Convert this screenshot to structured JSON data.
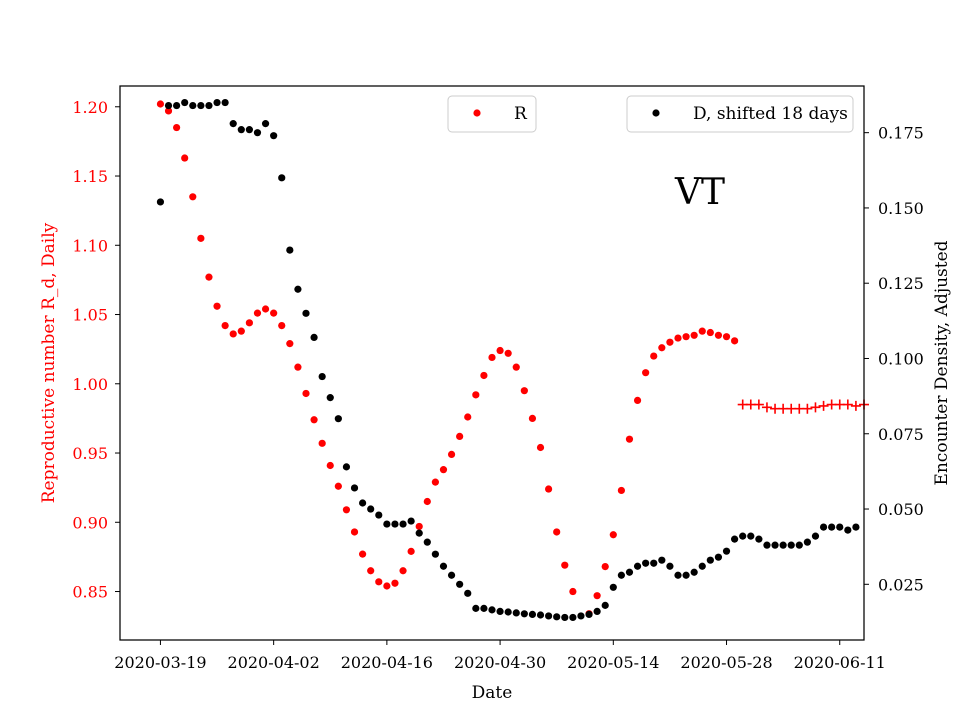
{
  "chart_data": {
    "type": "scatter",
    "xlabel": "Date",
    "y_left_label": "Reproductive number R_d, Daily",
    "y_right_label": "Encounter Density, Adjusted",
    "annotation": "VT",
    "x_start": "2020-03-19",
    "x_range": [
      "2020-03-14",
      "2020-06-14"
    ],
    "x_ticks": [
      "2020-03-19",
      "2020-04-02",
      "2020-04-16",
      "2020-04-30",
      "2020-05-14",
      "2020-05-28",
      "2020-06-11"
    ],
    "y_left_range": [
      0.815,
      1.215
    ],
    "y_left_ticks": [
      0.85,
      0.9,
      0.95,
      1.0,
      1.05,
      1.1,
      1.15,
      1.2
    ],
    "y_right_range": [
      0.0065,
      0.1905
    ],
    "y_right_ticks": [
      0.025,
      0.05,
      0.075,
      0.1,
      0.125,
      0.15,
      0.175
    ],
    "grid": false,
    "colors": {
      "R": "#ff0000",
      "D": "#000000",
      "left_axis": "#ff0000",
      "right_axis": "#000000"
    },
    "legends": [
      {
        "label": "R",
        "color": "#ff0000",
        "placement": "top-center"
      },
      {
        "label": "D, shifted 18 days",
        "color": "#000000",
        "placement": "top-right"
      }
    ],
    "series": [
      {
        "name": "R",
        "axis": "left",
        "marker": "dot",
        "color": "#ff0000",
        "points": [
          [
            "2020-03-19",
            1.202
          ],
          [
            "2020-03-20",
            1.197
          ],
          [
            "2020-03-21",
            1.185
          ],
          [
            "2020-03-22",
            1.163
          ],
          [
            "2020-03-23",
            1.135
          ],
          [
            "2020-03-24",
            1.105
          ],
          [
            "2020-03-25",
            1.077
          ],
          [
            "2020-03-26",
            1.056
          ],
          [
            "2020-03-27",
            1.042
          ],
          [
            "2020-03-28",
            1.036
          ],
          [
            "2020-03-29",
            1.038
          ],
          [
            "2020-03-30",
            1.044
          ],
          [
            "2020-03-31",
            1.051
          ],
          [
            "2020-04-01",
            1.054
          ],
          [
            "2020-04-02",
            1.051
          ],
          [
            "2020-04-03",
            1.042
          ],
          [
            "2020-04-04",
            1.029
          ],
          [
            "2020-04-05",
            1.012
          ],
          [
            "2020-04-06",
            0.993
          ],
          [
            "2020-04-07",
            0.974
          ],
          [
            "2020-04-08",
            0.957
          ],
          [
            "2020-04-09",
            0.941
          ],
          [
            "2020-04-10",
            0.926
          ],
          [
            "2020-04-11",
            0.909
          ],
          [
            "2020-04-12",
            0.893
          ],
          [
            "2020-04-13",
            0.877
          ],
          [
            "2020-04-14",
            0.865
          ],
          [
            "2020-04-15",
            0.857
          ],
          [
            "2020-04-16",
            0.854
          ],
          [
            "2020-04-17",
            0.856
          ],
          [
            "2020-04-18",
            0.865
          ],
          [
            "2020-04-19",
            0.879
          ],
          [
            "2020-04-20",
            0.897
          ],
          [
            "2020-04-21",
            0.915
          ],
          [
            "2020-04-22",
            0.929
          ],
          [
            "2020-04-23",
            0.938
          ],
          [
            "2020-04-24",
            0.949
          ],
          [
            "2020-04-25",
            0.962
          ],
          [
            "2020-04-26",
            0.976
          ],
          [
            "2020-04-27",
            0.992
          ],
          [
            "2020-04-28",
            1.006
          ],
          [
            "2020-04-29",
            1.019
          ],
          [
            "2020-04-30",
            1.024
          ],
          [
            "2020-05-01",
            1.022
          ],
          [
            "2020-05-02",
            1.012
          ],
          [
            "2020-05-03",
            0.995
          ],
          [
            "2020-05-04",
            0.975
          ],
          [
            "2020-05-05",
            0.954
          ],
          [
            "2020-05-06",
            0.924
          ],
          [
            "2020-05-07",
            0.893
          ],
          [
            "2020-05-08",
            0.869
          ],
          [
            "2020-05-09",
            0.85
          ],
          [
            "2020-05-11",
            0.834
          ],
          [
            "2020-05-12",
            0.847
          ],
          [
            "2020-05-13",
            0.868
          ],
          [
            "2020-05-14",
            0.891
          ],
          [
            "2020-05-15",
            0.923
          ],
          [
            "2020-05-16",
            0.96
          ],
          [
            "2020-05-17",
            0.988
          ],
          [
            "2020-05-18",
            1.008
          ],
          [
            "2020-05-19",
            1.02
          ],
          [
            "2020-05-20",
            1.026
          ],
          [
            "2020-05-21",
            1.03
          ],
          [
            "2020-05-22",
            1.033
          ],
          [
            "2020-05-23",
            1.034
          ],
          [
            "2020-05-24",
            1.035
          ],
          [
            "2020-05-25",
            1.038
          ],
          [
            "2020-05-26",
            1.037
          ],
          [
            "2020-05-27",
            1.035
          ],
          [
            "2020-05-28",
            1.034
          ],
          [
            "2020-05-29",
            1.031
          ]
        ]
      },
      {
        "name": "R",
        "axis": "left",
        "marker": "plus",
        "color": "#ff0000",
        "points": [
          [
            "2020-05-30",
            0.985
          ],
          [
            "2020-05-31",
            0.985
          ],
          [
            "2020-06-01",
            0.985
          ],
          [
            "2020-06-02",
            0.983
          ],
          [
            "2020-06-03",
            0.982
          ],
          [
            "2020-06-04",
            0.982
          ],
          [
            "2020-06-05",
            0.982
          ],
          [
            "2020-06-06",
            0.982
          ],
          [
            "2020-06-07",
            0.982
          ],
          [
            "2020-06-08",
            0.983
          ],
          [
            "2020-06-09",
            0.984
          ],
          [
            "2020-06-10",
            0.985
          ],
          [
            "2020-06-11",
            0.985
          ],
          [
            "2020-06-12",
            0.985
          ],
          [
            "2020-06-13",
            0.984
          ],
          [
            "2020-06-14",
            0.985
          ]
        ]
      },
      {
        "name": "D, shifted 18 days",
        "axis": "right",
        "marker": "dot",
        "color": "#000000",
        "points": [
          [
            "2020-03-19",
            0.152
          ],
          [
            "2020-03-20",
            0.184
          ],
          [
            "2020-03-21",
            0.184
          ],
          [
            "2020-03-22",
            0.185
          ],
          [
            "2020-03-23",
            0.184
          ],
          [
            "2020-03-24",
            0.184
          ],
          [
            "2020-03-25",
            0.184
          ],
          [
            "2020-03-26",
            0.185
          ],
          [
            "2020-03-27",
            0.185
          ],
          [
            "2020-03-28",
            0.178
          ],
          [
            "2020-03-29",
            0.176
          ],
          [
            "2020-03-30",
            0.176
          ],
          [
            "2020-03-31",
            0.175
          ],
          [
            "2020-04-01",
            0.178
          ],
          [
            "2020-04-02",
            0.174
          ],
          [
            "2020-04-03",
            0.16
          ],
          [
            "2020-04-04",
            0.136
          ],
          [
            "2020-04-05",
            0.123
          ],
          [
            "2020-04-06",
            0.115
          ],
          [
            "2020-04-07",
            0.107
          ],
          [
            "2020-04-08",
            0.094
          ],
          [
            "2020-04-09",
            0.087
          ],
          [
            "2020-04-10",
            0.08
          ],
          [
            "2020-04-11",
            0.064
          ],
          [
            "2020-04-12",
            0.057
          ],
          [
            "2020-04-13",
            0.052
          ],
          [
            "2020-04-14",
            0.05
          ],
          [
            "2020-04-15",
            0.048
          ],
          [
            "2020-04-16",
            0.045
          ],
          [
            "2020-04-17",
            0.045
          ],
          [
            "2020-04-18",
            0.045
          ],
          [
            "2020-04-19",
            0.046
          ],
          [
            "2020-04-20",
            0.042
          ],
          [
            "2020-04-21",
            0.039
          ],
          [
            "2020-04-22",
            0.035
          ],
          [
            "2020-04-23",
            0.031
          ],
          [
            "2020-04-24",
            0.028
          ],
          [
            "2020-04-25",
            0.025
          ],
          [
            "2020-04-26",
            0.022
          ],
          [
            "2020-04-27",
            0.017
          ],
          [
            "2020-04-28",
            0.017
          ],
          [
            "2020-04-29",
            0.0165
          ],
          [
            "2020-04-30",
            0.016
          ],
          [
            "2020-05-01",
            0.0158
          ],
          [
            "2020-05-02",
            0.0155
          ],
          [
            "2020-05-03",
            0.0152
          ],
          [
            "2020-05-04",
            0.015
          ],
          [
            "2020-05-05",
            0.0148
          ],
          [
            "2020-05-06",
            0.0145
          ],
          [
            "2020-05-07",
            0.0142
          ],
          [
            "2020-05-08",
            0.014
          ],
          [
            "2020-05-09",
            0.014
          ],
          [
            "2020-05-10",
            0.0145
          ],
          [
            "2020-05-11",
            0.015
          ],
          [
            "2020-05-12",
            0.016
          ],
          [
            "2020-05-13",
            0.018
          ],
          [
            "2020-05-14",
            0.024
          ],
          [
            "2020-05-15",
            0.028
          ],
          [
            "2020-05-16",
            0.029
          ],
          [
            "2020-05-17",
            0.031
          ],
          [
            "2020-05-18",
            0.032
          ],
          [
            "2020-05-19",
            0.032
          ],
          [
            "2020-05-20",
            0.033
          ],
          [
            "2020-05-21",
            0.031
          ],
          [
            "2020-05-22",
            0.028
          ],
          [
            "2020-05-23",
            0.028
          ],
          [
            "2020-05-24",
            0.029
          ],
          [
            "2020-05-25",
            0.031
          ],
          [
            "2020-05-26",
            0.033
          ],
          [
            "2020-05-27",
            0.034
          ],
          [
            "2020-05-28",
            0.036
          ],
          [
            "2020-05-29",
            0.04
          ],
          [
            "2020-05-30",
            0.041
          ],
          [
            "2020-05-31",
            0.041
          ],
          [
            "2020-06-01",
            0.04
          ],
          [
            "2020-06-02",
            0.038
          ],
          [
            "2020-06-03",
            0.038
          ],
          [
            "2020-06-04",
            0.038
          ],
          [
            "2020-06-05",
            0.038
          ],
          [
            "2020-06-06",
            0.038
          ],
          [
            "2020-06-07",
            0.039
          ],
          [
            "2020-06-08",
            0.041
          ],
          [
            "2020-06-09",
            0.044
          ],
          [
            "2020-06-10",
            0.044
          ],
          [
            "2020-06-11",
            0.044
          ],
          [
            "2020-06-12",
            0.043
          ],
          [
            "2020-06-13",
            0.044
          ]
        ]
      }
    ]
  }
}
